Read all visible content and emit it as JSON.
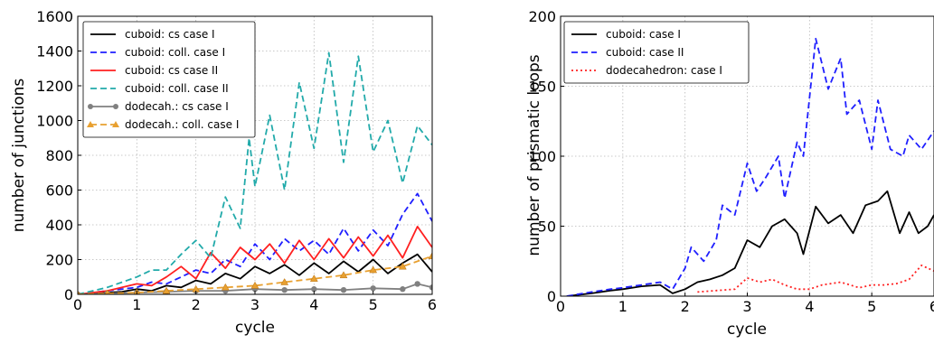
{
  "chart_data": [
    {
      "type": "line",
      "xlabel": "cycle",
      "ylabel": "number of junctions",
      "xlim": [
        0,
        6
      ],
      "ylim": [
        0,
        1600
      ],
      "xticks": [
        0,
        1,
        2,
        3,
        4,
        5,
        6
      ],
      "yticks": [
        0,
        200,
        400,
        600,
        800,
        1000,
        1200,
        1400,
        1600
      ],
      "xtick_labels": [
        "0",
        "1",
        "2",
        "3",
        "4",
        "5",
        "6"
      ],
      "ytick_labels": [
        "0",
        "200",
        "400",
        "600",
        "800",
        "1000",
        "1200",
        "1400",
        "1600"
      ],
      "grid": true,
      "legend_position": "top-left",
      "series": [
        {
          "name": "cuboid: cs case I",
          "color": "#000000",
          "style": "solid",
          "marker": "none",
          "x": [
            0,
            0.5,
            0.75,
            1,
            1.25,
            1.5,
            1.75,
            2,
            2.25,
            2.5,
            2.75,
            3,
            3.25,
            3.5,
            3.75,
            4,
            4.25,
            4.5,
            4.75,
            5,
            5.25,
            5.5,
            5.75,
            6
          ],
          "y": [
            0,
            10,
            15,
            30,
            20,
            50,
            40,
            80,
            60,
            120,
            90,
            160,
            120,
            170,
            110,
            180,
            120,
            190,
            130,
            200,
            120,
            180,
            230,
            130
          ]
        },
        {
          "name": "cuboid: coll. case I",
          "color": "#1f1fff",
          "style": "dashed",
          "marker": "none",
          "x": [
            0,
            0.5,
            1,
            1.25,
            1.5,
            1.75,
            2,
            2.25,
            2.5,
            2.75,
            3,
            3.25,
            3.5,
            3.75,
            4,
            4.25,
            4.5,
            4.75,
            5,
            5.25,
            5.5,
            5.75,
            6
          ],
          "y": [
            0,
            20,
            40,
            70,
            60,
            100,
            140,
            120,
            200,
            160,
            290,
            200,
            320,
            250,
            310,
            230,
            380,
            250,
            370,
            280,
            460,
            580,
            420
          ]
        },
        {
          "name": "cuboid: cs case II",
          "color": "#ff2020",
          "style": "solid",
          "marker": "none",
          "x": [
            0,
            0.5,
            0.75,
            1,
            1.25,
            1.5,
            1.75,
            2,
            2.25,
            2.5,
            2.75,
            3,
            3.25,
            3.5,
            3.75,
            4,
            4.25,
            4.5,
            4.75,
            5,
            5.25,
            5.5,
            5.75,
            6
          ],
          "y": [
            0,
            20,
            40,
            60,
            50,
            100,
            160,
            90,
            240,
            150,
            270,
            200,
            290,
            180,
            310,
            200,
            320,
            210,
            330,
            220,
            340,
            210,
            390,
            270
          ]
        },
        {
          "name": "cuboid: coll. case II",
          "color": "#22aaaa",
          "style": "dashed",
          "marker": "none",
          "x": [
            0,
            0.5,
            1,
            1.25,
            1.5,
            1.75,
            2,
            2.25,
            2.5,
            2.75,
            2.9,
            3,
            3.25,
            3.5,
            3.75,
            4,
            4.25,
            4.5,
            4.75,
            5,
            5.25,
            5.5,
            5.75,
            6
          ],
          "y": [
            0,
            40,
            100,
            140,
            140,
            230,
            310,
            210,
            560,
            380,
            900,
            620,
            1030,
            600,
            1220,
            840,
            1390,
            760,
            1370,
            820,
            1000,
            640,
            970,
            860
          ]
        },
        {
          "name": "dodecah.: cs case I",
          "color": "#808080",
          "style": "solid",
          "marker": "circle",
          "x": [
            0,
            0.5,
            1,
            1.5,
            2,
            2.5,
            3,
            3.5,
            4,
            4.5,
            5,
            5.5,
            5.75,
            6
          ],
          "y": [
            0,
            5,
            10,
            15,
            20,
            20,
            30,
            25,
            30,
            25,
            35,
            30,
            60,
            40
          ]
        },
        {
          "name": "dodecah.: coll. case I",
          "color": "#e8a030",
          "style": "dashed",
          "marker": "triangle",
          "x": [
            0,
            0.5,
            1,
            1.5,
            2,
            2.5,
            3,
            3.5,
            4,
            4.5,
            5,
            5.5,
            6
          ],
          "y": [
            0,
            5,
            10,
            20,
            30,
            40,
            50,
            70,
            90,
            110,
            140,
            160,
            220
          ]
        }
      ]
    },
    {
      "type": "line",
      "xlabel": "cycle",
      "ylabel": "number of prismatic loops",
      "xlim": [
        0,
        6
      ],
      "ylim": [
        0,
        200
      ],
      "xticks": [
        0,
        1,
        2,
        3,
        4,
        5,
        6
      ],
      "yticks": [
        0,
        50,
        100,
        150,
        200
      ],
      "xtick_labels": [
        "0",
        "1",
        "2",
        "3",
        "4",
        "5",
        "6"
      ],
      "ytick_labels": [
        "0",
        "50",
        "100",
        "150",
        "200"
      ],
      "grid": true,
      "legend_position": "top-left",
      "series": [
        {
          "name": "cuboid: case I",
          "color": "#000000",
          "style": "solid",
          "marker": "none",
          "x": [
            0.1,
            0.5,
            0.8,
            1,
            1.3,
            1.6,
            1.8,
            2,
            2.2,
            2.4,
            2.6,
            2.8,
            3,
            3.2,
            3.4,
            3.6,
            3.8,
            3.9,
            4.1,
            4.3,
            4.5,
            4.7,
            4.9,
            5.1,
            5.25,
            5.45,
            5.6,
            5.75,
            5.9,
            6
          ],
          "y": [
            0,
            2,
            4,
            5,
            7,
            8,
            2,
            5,
            10,
            12,
            15,
            20,
            40,
            35,
            50,
            55,
            45,
            30,
            64,
            52,
            58,
            45,
            65,
            68,
            75,
            45,
            60,
            45,
            50,
            58
          ]
        },
        {
          "name": "cuboid: case II",
          "color": "#1f1fff",
          "style": "dashed",
          "marker": "none",
          "x": [
            0.1,
            0.5,
            0.8,
            1,
            1.3,
            1.6,
            1.8,
            2,
            2.1,
            2.3,
            2.5,
            2.6,
            2.8,
            3,
            3.15,
            3.3,
            3.5,
            3.6,
            3.8,
            3.9,
            4.1,
            4.3,
            4.5,
            4.6,
            4.8,
            5,
            5.1,
            5.3,
            5.5,
            5.6,
            5.8,
            6
          ],
          "y": [
            0,
            3,
            5,
            6,
            8,
            10,
            5,
            20,
            35,
            25,
            40,
            65,
            58,
            95,
            75,
            85,
            100,
            70,
            110,
            100,
            184,
            148,
            170,
            130,
            140,
            105,
            140,
            105,
            100,
            115,
            105,
            118
          ]
        },
        {
          "name": "dodecahedron: case I",
          "color": "#ff2020",
          "style": "dotted",
          "marker": "none",
          "x": [
            2.2,
            2.5,
            2.8,
            3,
            3.2,
            3.4,
            3.6,
            3.8,
            4,
            4.2,
            4.5,
            4.8,
            5,
            5.2,
            5.4,
            5.6,
            5.8,
            6
          ],
          "y": [
            3,
            4,
            5,
            13,
            10,
            12,
            8,
            5,
            5,
            8,
            10,
            6,
            8,
            8,
            9,
            12,
            22,
            18
          ]
        }
      ]
    }
  ]
}
